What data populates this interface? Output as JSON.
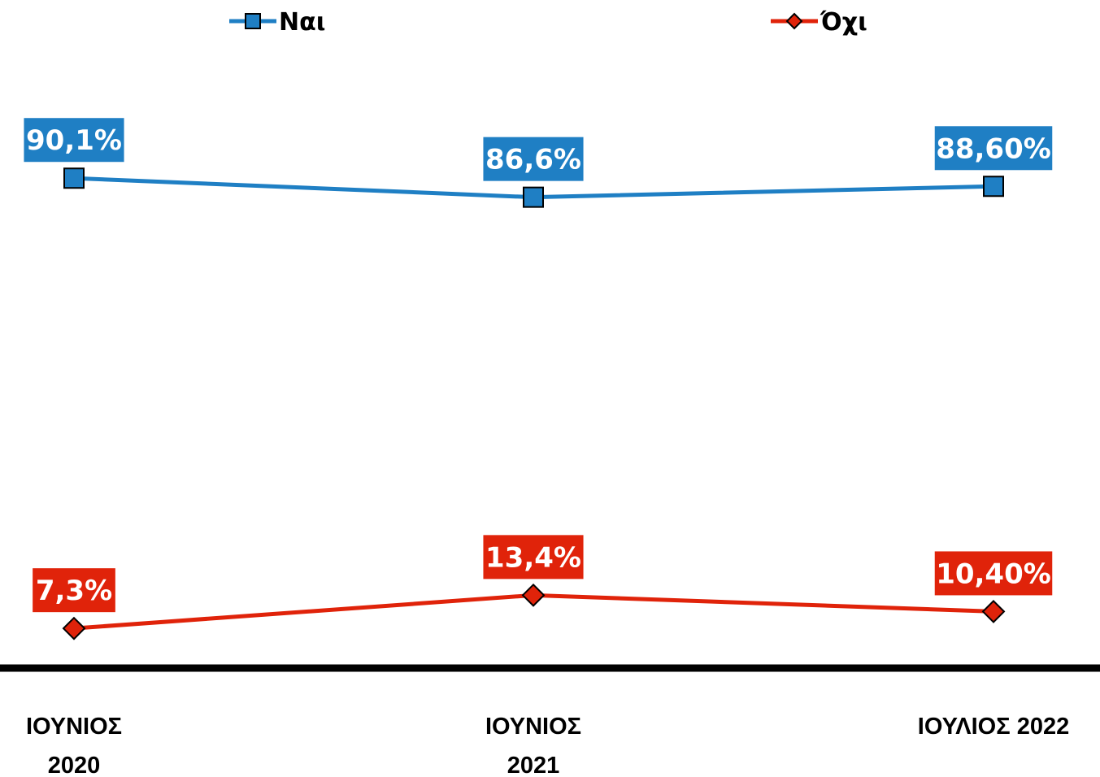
{
  "chart_data": {
    "type": "line",
    "categories": [
      [
        "ΙΟΥΝΙΟΣ",
        "2020"
      ],
      [
        "ΙΟΥΝΙΟΣ",
        "2021"
      ],
      [
        "ΙΟΥΛΙΟΣ 2022"
      ]
    ],
    "series": [
      {
        "name": "Ναι",
        "values": [
          90.1,
          86.6,
          88.6
        ],
        "labels": [
          "90,1%",
          "86,6%",
          "88,60%"
        ],
        "color": "#1f7fc4",
        "marker": "square"
      },
      {
        "name": "Όχι",
        "values": [
          7.3,
          13.4,
          10.4
        ],
        "labels": [
          "7,3%",
          "13,4%",
          "10,40%"
        ],
        "color": "#e0230a",
        "marker": "diamond"
      }
    ],
    "title": "",
    "xlabel": "",
    "ylabel": "",
    "ylim": [
      0,
      100
    ],
    "grid": false,
    "legend": "top"
  }
}
